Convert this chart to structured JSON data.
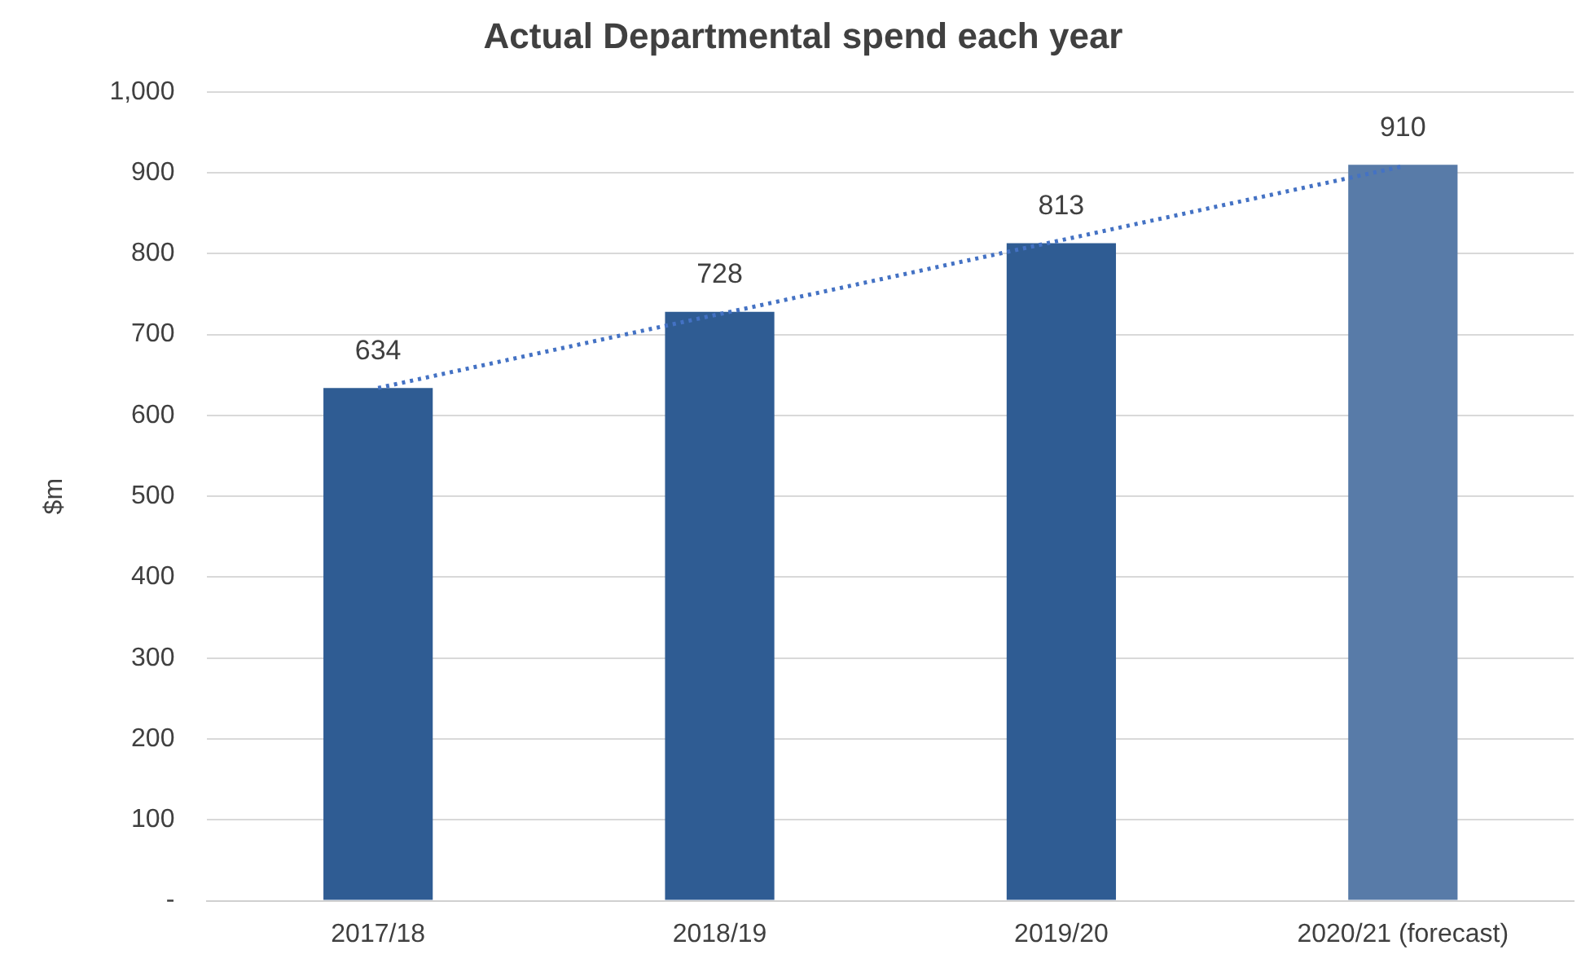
{
  "chart_data": {
    "type": "bar",
    "title": "Actual Departmental spend each year",
    "ylabel": "$m",
    "categories": [
      "2017/18",
      "2018/19",
      "2019/20",
      "2020/21 (forecast)"
    ],
    "series": [
      {
        "colors": [
          "#2f5c93",
          "#2f5c93",
          "#2f5c93",
          "#587ba8"
        ],
        "values": [
          634,
          728,
          813,
          910
        ],
        "value_labels": [
          "634",
          "728",
          "813",
          "910"
        ]
      },
      {
        "type": "line",
        "color": "#4472c4",
        "x": [
          "2017/18",
          "2020/21 (forecast)"
        ],
        "values": [
          634,
          908
        ],
        "line_style": "dotted",
        "marker": "none"
      }
    ],
    "ylim": [
      0,
      1000
    ],
    "yticks": [
      {
        "value": 0,
        "label": "-"
      },
      100,
      200,
      300,
      400,
      500,
      600,
      700,
      800,
      900,
      {
        "value": 1000,
        "label": "1,000"
      }
    ],
    "grid": "y",
    "legend": false
  }
}
